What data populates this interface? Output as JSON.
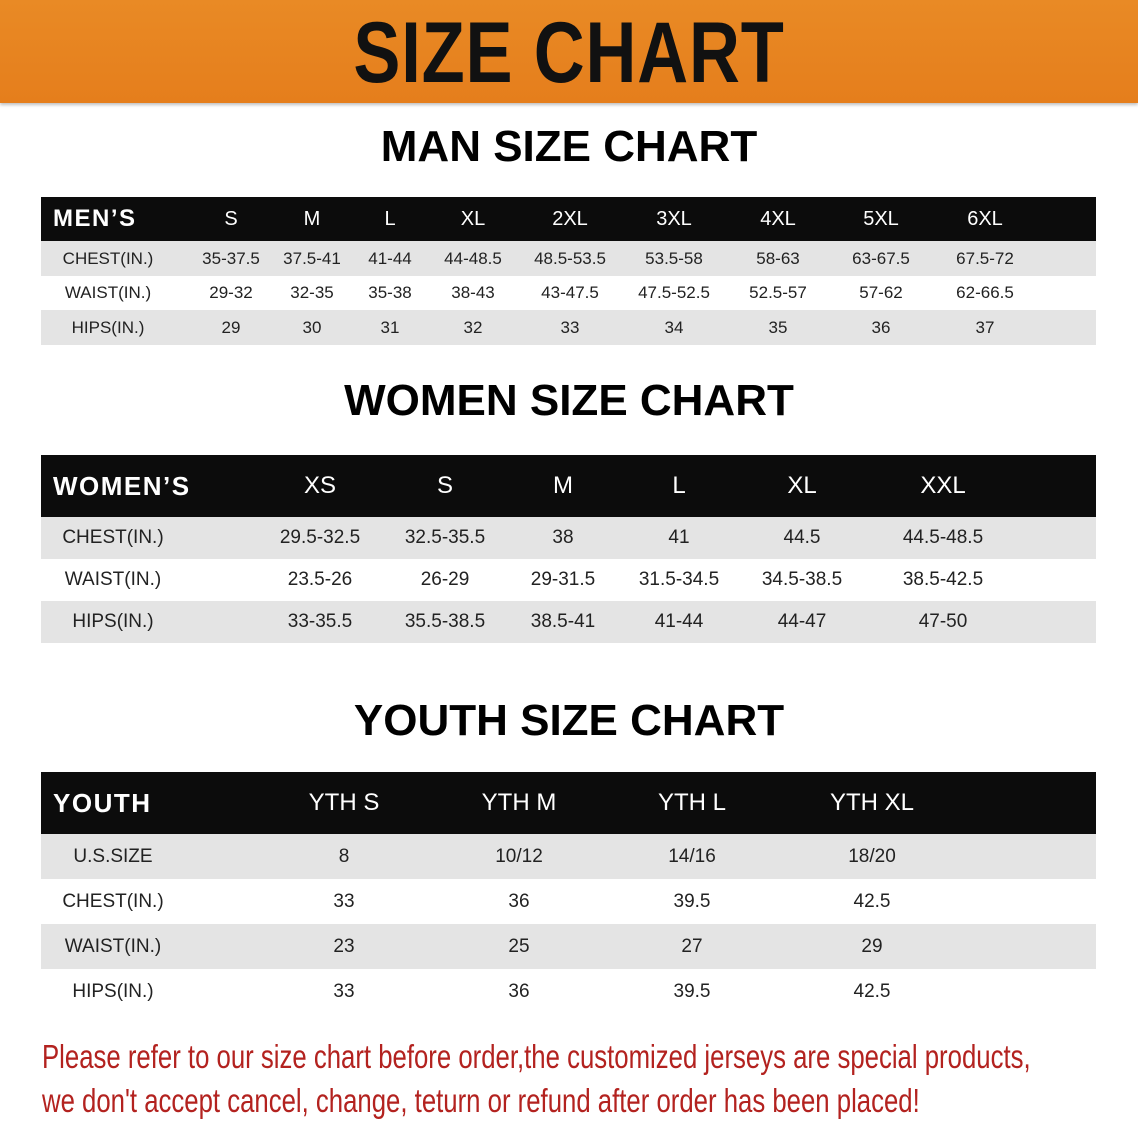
{
  "banner": {
    "title": "SIZE CHART",
    "color": "#e8821f"
  },
  "men": {
    "title": "MAN SIZE CHART",
    "header": [
      "MEN’S",
      "S",
      "M",
      "L",
      "XL",
      "2XL",
      "3XL",
      "4XL",
      "5XL",
      "6XL"
    ],
    "rows": [
      [
        "CHEST(IN.)",
        "35-37.5",
        "37.5-41",
        "41-44",
        "44-48.5",
        "48.5-53.5",
        "53.5-58",
        "58-63",
        "63-67.5",
        "67.5-72"
      ],
      [
        "WAIST(IN.)",
        "29-32",
        "32-35",
        "35-38",
        "38-43",
        "43-47.5",
        "47.5-52.5",
        "52.5-57",
        "57-62",
        "62-66.5"
      ],
      [
        "HIPS(IN.)",
        "29",
        "30",
        "31",
        "32",
        "33",
        "34",
        "35",
        "36",
        "37"
      ]
    ]
  },
  "women": {
    "title": "WOMEN SIZE CHART",
    "header": [
      "WOMEN’S",
      "XS",
      "S",
      "M",
      "L",
      "XL",
      "XXL"
    ],
    "rows": [
      [
        "CHEST(IN.)",
        "29.5-32.5",
        "32.5-35.5",
        "38",
        "41",
        "44.5",
        "44.5-48.5"
      ],
      [
        "WAIST(IN.)",
        "23.5-26",
        "26-29",
        "29-31.5",
        "31.5-34.5",
        "34.5-38.5",
        "38.5-42.5"
      ],
      [
        "HIPS(IN.)",
        "33-35.5",
        "35.5-38.5",
        "38.5-41",
        "41-44",
        "44-47",
        "47-50"
      ]
    ]
  },
  "youth": {
    "title": "YOUTH SIZE CHART",
    "header": [
      "YOUTH",
      "YTH S",
      "YTH M",
      "YTH L",
      "YTH XL"
    ],
    "rows": [
      [
        "U.S.SIZE",
        "8",
        "10/12",
        "14/16",
        "18/20"
      ],
      [
        "CHEST(IN.)",
        "33",
        "36",
        "39.5",
        "42.5"
      ],
      [
        "WAIST(IN.)",
        "23",
        "25",
        "27",
        "29"
      ],
      [
        "HIPS(IN.)",
        "33",
        "36",
        "39.5",
        "42.5"
      ]
    ]
  },
  "note": {
    "line1": "Please refer to our size chart before order,the customized jerseys are special products,",
    "line2": "we don't accept cancel, change, teturn or refund after order has been placed!",
    "color": "#b3221f"
  }
}
